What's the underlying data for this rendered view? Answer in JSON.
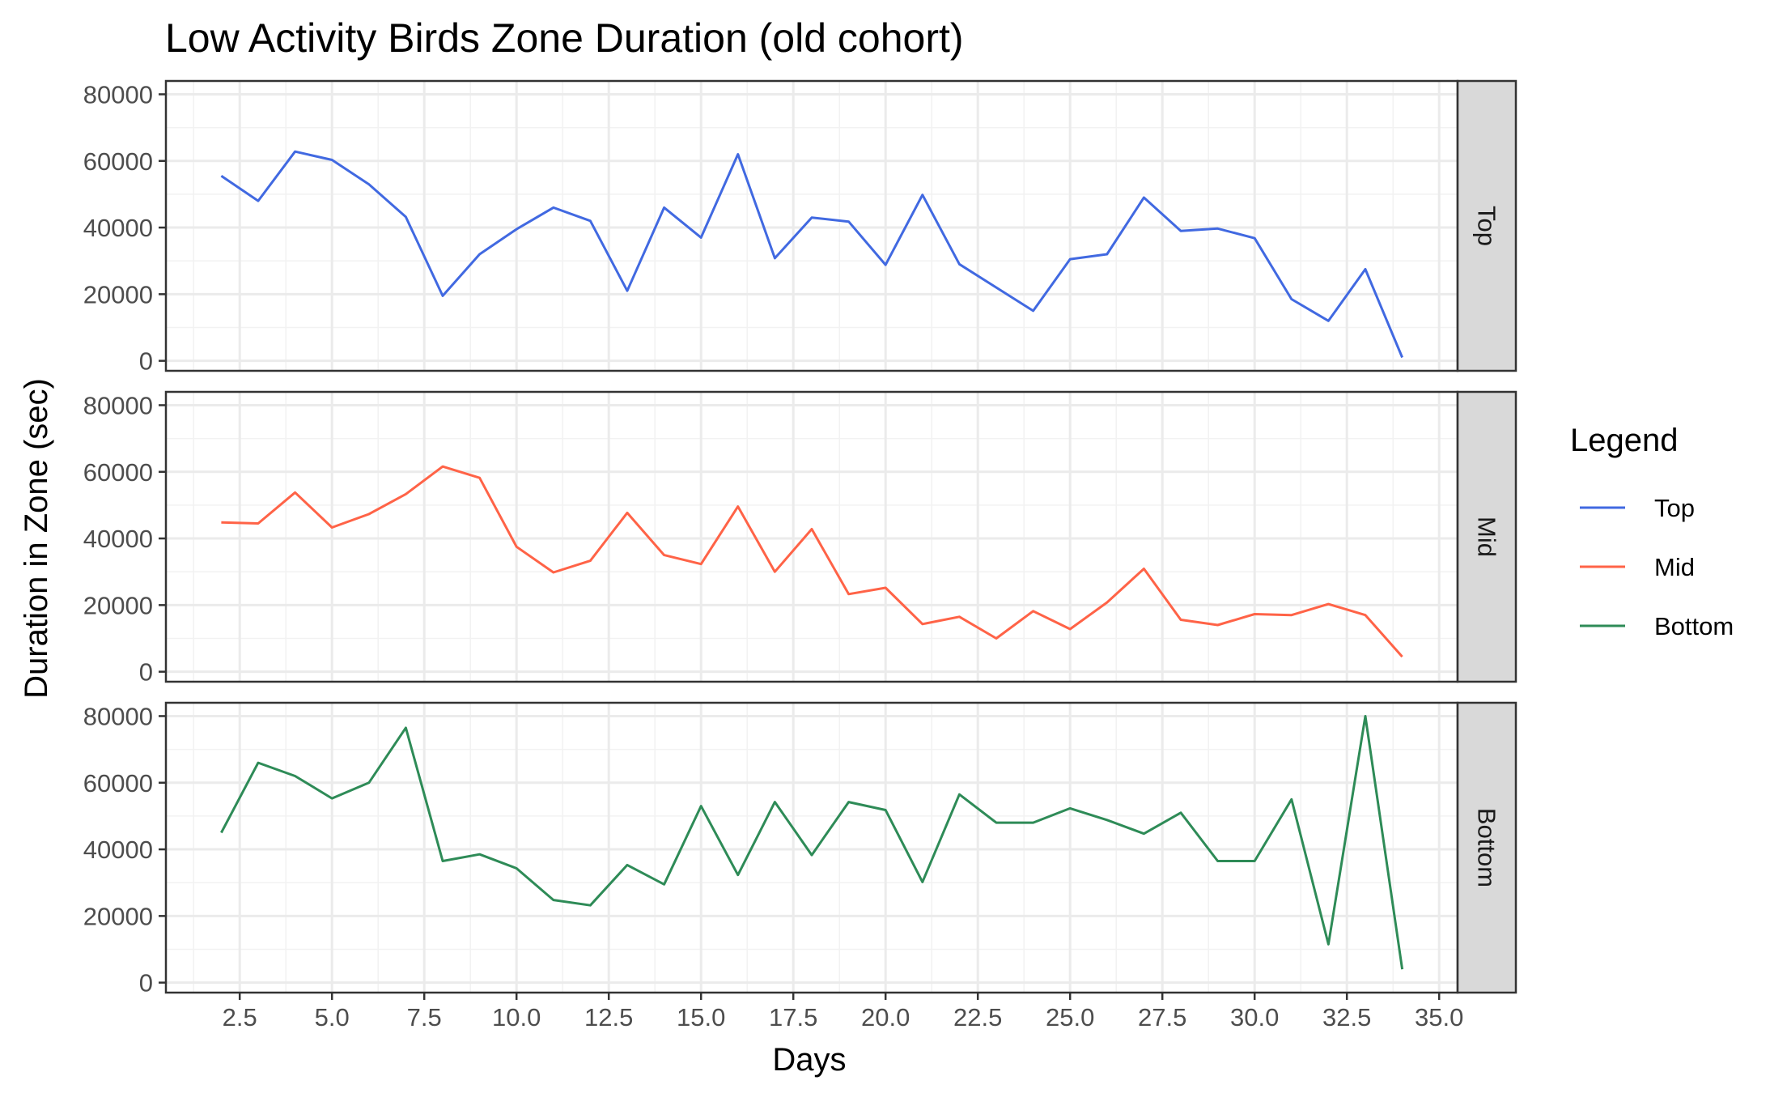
{
  "chart_data": {
    "type": "line",
    "title": "Low Activity Birds Zone Duration (old cohort)",
    "xlabel": "Days",
    "ylabel": "Duration in Zone (sec)",
    "xlim": [
      0.5,
      35.5
    ],
    "ylim": [
      -3000,
      84000
    ],
    "x_ticks": [
      2.5,
      5,
      7.5,
      10,
      12.5,
      15,
      17.5,
      20,
      22.5,
      25,
      27.5,
      30,
      32.5,
      35
    ],
    "x_tick_labels": [
      "2.5",
      "5.0",
      "7.5",
      "10.0",
      "12.5",
      "15.0",
      "17.5",
      "20.0",
      "22.5",
      "25.0",
      "27.5",
      "30.0",
      "32.5",
      "35.0"
    ],
    "y_ticks": [
      0,
      20000,
      40000,
      60000,
      80000
    ],
    "y_tick_labels": [
      "0",
      "20000",
      "40000",
      "60000",
      "80000"
    ],
    "grid": true,
    "legend": {
      "title": "Legend",
      "position": "right"
    },
    "x": [
      2,
      3,
      4,
      5,
      6,
      7,
      8,
      9,
      10,
      11,
      12,
      13,
      14,
      15,
      16,
      17,
      18,
      19,
      20,
      21,
      22,
      23,
      24,
      25,
      26,
      27,
      28,
      29,
      30,
      31,
      32,
      33,
      34
    ],
    "series": [
      {
        "name": "Top",
        "color": "#4169e1",
        "values": [
          55500,
          48000,
          62800,
          60300,
          53000,
          43200,
          19500,
          32000,
          39500,
          46000,
          42000,
          21000,
          46000,
          37000,
          62000,
          30800,
          43000,
          41800,
          28800,
          49800,
          29000,
          22000,
          15000,
          30500,
          32000,
          49000,
          39000,
          39700,
          36800,
          18500,
          12000,
          27500,
          1000
        ]
      },
      {
        "name": "Mid",
        "color": "#ff6347",
        "values": [
          44800,
          44500,
          53800,
          43300,
          47300,
          53300,
          61600,
          58200,
          37500,
          29800,
          33300,
          47700,
          35000,
          32300,
          49600,
          30000,
          42800,
          23300,
          25200,
          14300,
          16500,
          10000,
          18200,
          12800,
          20800,
          30900,
          15600,
          14000,
          17300,
          17000,
          20300,
          17000,
          4500
        ]
      },
      {
        "name": "Bottom",
        "color": "#2e8b57",
        "values": [
          45000,
          66000,
          62000,
          55300,
          60000,
          76500,
          36500,
          38500,
          34300,
          24800,
          23200,
          35300,
          29500,
          53000,
          32300,
          54200,
          38300,
          54200,
          51800,
          30200,
          56500,
          48000,
          48000,
          52300,
          48800,
          44700,
          51000,
          36500,
          36500,
          55000,
          11500,
          80000,
          4000
        ]
      }
    ]
  }
}
